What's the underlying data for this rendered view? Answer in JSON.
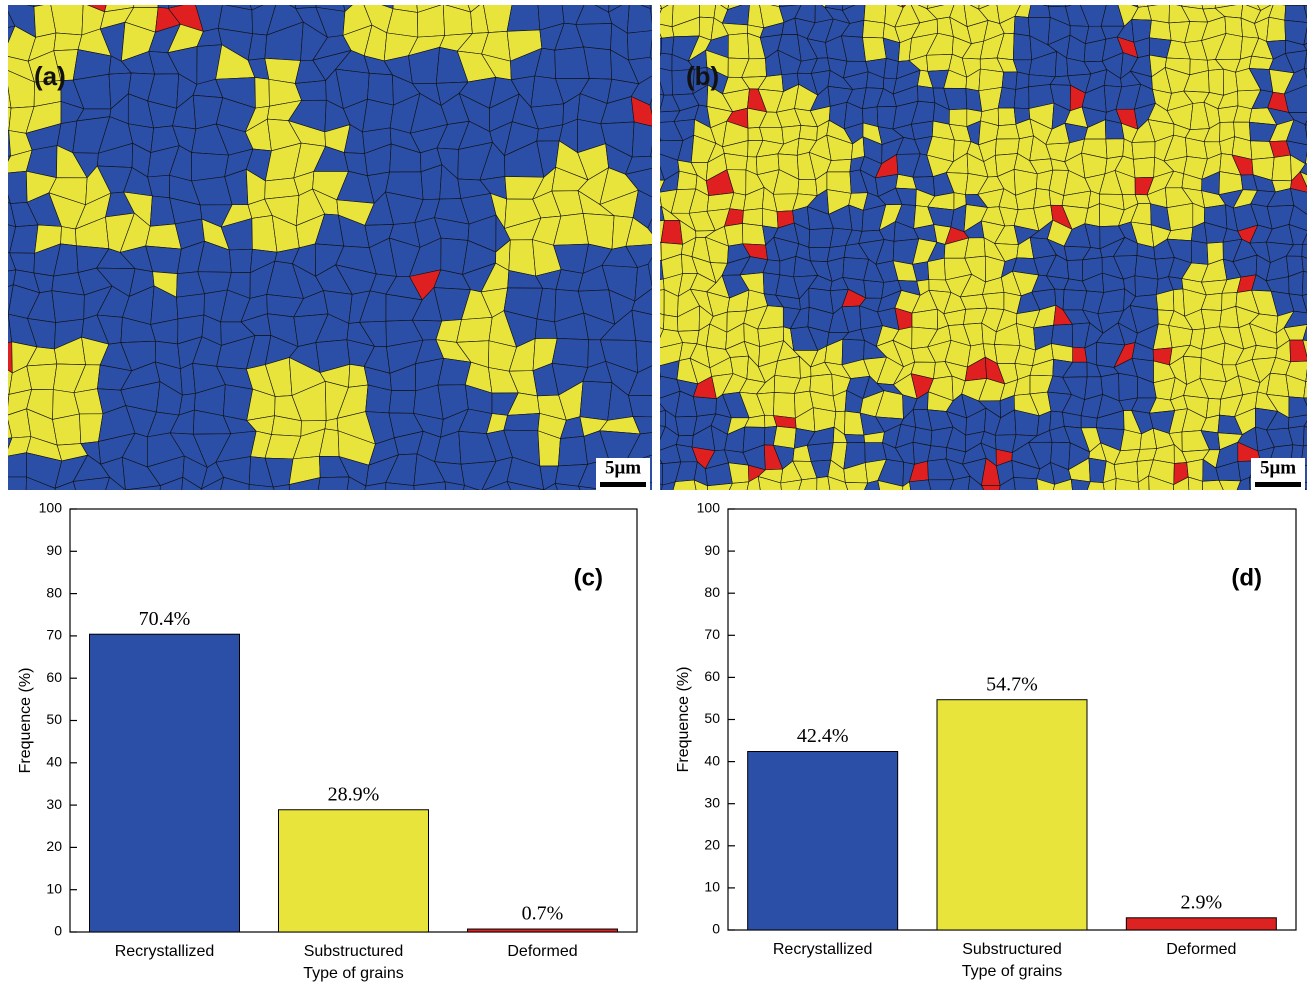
{
  "panels": [
    {
      "label": "(a)",
      "scale_bar": "5μm"
    },
    {
      "label": "(b)",
      "scale_bar": "5μm"
    }
  ],
  "chart_data": [
    {
      "type": "bar",
      "panel_label": "(c)",
      "ylabel": "Frequence (%)",
      "xlabel": "Type of grains",
      "categories": [
        "Recrystallized",
        "Substructured",
        "Deformed"
      ],
      "values": [
        70.4,
        28.9,
        0.7
      ],
      "value_labels": [
        "70.4%",
        "28.9%",
        "0.7%"
      ],
      "colors": [
        "#2b4ea6",
        "#e8e43c",
        "#dd2222"
      ],
      "ylim": [
        0,
        100
      ],
      "yticks": [
        0,
        10,
        20,
        30,
        40,
        50,
        60,
        70,
        80,
        90,
        100
      ]
    },
    {
      "type": "bar",
      "panel_label": "(d)",
      "ylabel": "Frequence (%)",
      "xlabel": "Type of grains",
      "categories": [
        "Recrystallized",
        "Substructured",
        "Deformed"
      ],
      "values": [
        42.4,
        54.7,
        2.9
      ],
      "value_labels": [
        "42.4%",
        "54.7%",
        "2.9%"
      ],
      "colors": [
        "#2b4ea6",
        "#e8e43c",
        "#dd2222"
      ],
      "ylim": [
        0,
        100
      ],
      "yticks": [
        0,
        10,
        20,
        30,
        40,
        50,
        60,
        70,
        80,
        90,
        100
      ]
    }
  ]
}
